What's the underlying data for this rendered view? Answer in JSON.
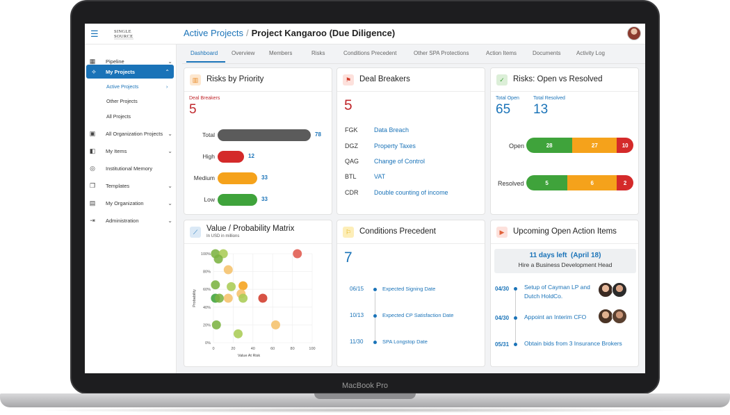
{
  "device_label": "MacBook Pro",
  "app": {
    "logo_text": "SINGLE SOURCE"
  },
  "breadcrumb": {
    "parent": "Active Projects",
    "separator": "/",
    "current": "Project Kangaroo (Due Diligence)"
  },
  "sidebar": {
    "items": [
      {
        "label": "Pipeline",
        "icon": "grid-icon",
        "chevron": "⌄"
      },
      {
        "label": "My Projects",
        "icon": "network-icon",
        "chevron": "⌃",
        "active": true
      },
      {
        "label": "All Organization Projects",
        "icon": "building-icon",
        "chevron": "⌄"
      },
      {
        "label": "My Items",
        "icon": "folder-icon",
        "chevron": "⌄"
      },
      {
        "label": "Institutional Memory",
        "icon": "memory-icon",
        "chevron": ""
      },
      {
        "label": "Templates",
        "icon": "templates-icon",
        "chevron": "⌄"
      },
      {
        "label": "My Organization",
        "icon": "org-icon",
        "chevron": "⌄"
      },
      {
        "label": "Administration",
        "icon": "admin-icon",
        "chevron": "⌄"
      }
    ],
    "subitems": [
      {
        "label": "Active Projects",
        "chevron": "›"
      },
      {
        "label": "Other Projects"
      },
      {
        "label": "All Projects"
      }
    ]
  },
  "tabs": [
    "Dashboard",
    "Overview",
    "Members",
    "Risks",
    "Conditions Precedent",
    "Other SPA Protections",
    "Action Items",
    "Documents",
    "Activity Log"
  ],
  "risks_by_priority": {
    "title": "Risks by Priority",
    "deal_breakers_label": "Deal Breakers",
    "deal_breakers_count": "5",
    "rows": [
      {
        "name": "Total",
        "value": "78",
        "color": "#5b5b5b"
      },
      {
        "name": "High",
        "value": "12",
        "color": "#d42a2a"
      },
      {
        "name": "Medium",
        "value": "33",
        "color": "#f5a21b"
      },
      {
        "name": "Low",
        "value": "33",
        "color": "#3fa33b"
      }
    ]
  },
  "deal_breakers": {
    "title": "Deal Breakers",
    "count": "5",
    "items": [
      {
        "code": "FGK",
        "text": "Data Breach"
      },
      {
        "code": "DGZ",
        "text": "Property Taxes"
      },
      {
        "code": "QAG",
        "text": "Change of Control"
      },
      {
        "code": "BTL",
        "text": "VAT"
      },
      {
        "code": "CDR",
        "text": "Double counting of income"
      }
    ]
  },
  "open_vs_resolved": {
    "title": "Risks: Open vs Resolved",
    "total_open_label": "Total Open",
    "total_open": "65",
    "total_resolved_label": "Total Resolved",
    "total_resolved": "13",
    "rows": [
      {
        "name": "Open",
        "segments": [
          {
            "value": "28",
            "color": "#3fa33b"
          },
          {
            "value": "27",
            "color": "#f5a21b"
          },
          {
            "value": "10",
            "color": "#d42a2a"
          }
        ]
      },
      {
        "name": "Resolved",
        "segments": [
          {
            "value": "5",
            "color": "#3fa33b"
          },
          {
            "value": "6",
            "color": "#f5a21b"
          },
          {
            "value": "2",
            "color": "#d42a2a"
          }
        ]
      }
    ]
  },
  "matrix": {
    "title": "Value / Probability Matrix",
    "subtitle": "In USD in millions",
    "chart_data": {
      "type": "scatter",
      "xlabel": "Value At Risk",
      "ylabel": "Probability",
      "xlim": [
        0,
        100
      ],
      "ylim": [
        0,
        100
      ],
      "x_ticks": [
        "0",
        "20",
        "40",
        "60",
        "80",
        "100"
      ],
      "y_ticks": [
        "0%",
        "20%",
        "40%",
        "60%",
        "80%",
        "100%"
      ],
      "points": [
        {
          "x": 2,
          "y": 100,
          "color": "#7cb342"
        },
        {
          "x": 10,
          "y": 100,
          "color": "#aacc55"
        },
        {
          "x": 5,
          "y": 94,
          "color": "#7cb342"
        },
        {
          "x": 15,
          "y": 82,
          "color": "#f5c26b"
        },
        {
          "x": 85,
          "y": 100,
          "color": "#e05a4f"
        },
        {
          "x": 2,
          "y": 65,
          "color": "#7cb342"
        },
        {
          "x": 18,
          "y": 63,
          "color": "#aacc55"
        },
        {
          "x": 30,
          "y": 64,
          "color": "#f5a21b"
        },
        {
          "x": 28,
          "y": 55,
          "color": "#f5c26b"
        },
        {
          "x": 2,
          "y": 50,
          "color": "#3fa33b"
        },
        {
          "x": 6,
          "y": 50,
          "color": "#7cb342"
        },
        {
          "x": 15,
          "y": 50,
          "color": "#f5c26b"
        },
        {
          "x": 30,
          "y": 50,
          "color": "#aacc55"
        },
        {
          "x": 50,
          "y": 50,
          "color": "#d23b2b"
        },
        {
          "x": 3,
          "y": 20,
          "color": "#7cb342"
        },
        {
          "x": 25,
          "y": 10,
          "color": "#aacc55"
        },
        {
          "x": 63,
          "y": 20,
          "color": "#f5c26b"
        }
      ]
    }
  },
  "conditions_precedent": {
    "title": "Conditions Precedent",
    "count": "7",
    "items": [
      {
        "date": "06/15",
        "text": "Expected Signing Date"
      },
      {
        "date": "10/13",
        "text": "Expected CP Satisfaction Date"
      },
      {
        "date": "11/30",
        "text": "SPA Longstop Date"
      }
    ]
  },
  "action_items": {
    "title": "Upcoming Open Action Items",
    "banner_title": "11 days left  (April 18)",
    "banner_sub": "Hire a Business Development Head",
    "items": [
      {
        "date": "04/30",
        "line1": "Setup of Cayman LP and",
        "line2": "Dutch HoldCo."
      },
      {
        "date": "04/30",
        "line1": "Appoint an Interim CFO",
        "line2": ""
      },
      {
        "date": "05/31",
        "line1": "Obtain bids from 3 Insurance Brokers",
        "line2": ""
      }
    ]
  }
}
